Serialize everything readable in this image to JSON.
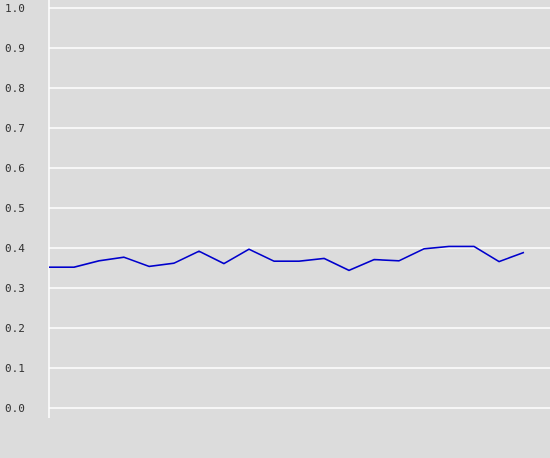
{
  "chart_data": {
    "type": "line",
    "title": "",
    "xlabel": "",
    "ylabel": "",
    "ylim": [
      0.0,
      1.0
    ],
    "yticks": [
      "0.0",
      "0.1",
      "0.2",
      "0.3",
      "0.4",
      "0.5",
      "0.6",
      "0.7",
      "0.8",
      "0.9",
      "1.0"
    ],
    "grid": true,
    "legend": "none",
    "series": [
      {
        "values": [
          0.352,
          0.352,
          0.368,
          0.377,
          0.354,
          0.362,
          0.392,
          0.361,
          0.397,
          0.367,
          0.367,
          0.374,
          0.344,
          0.371,
          0.368,
          0.398,
          0.404,
          0.404,
          0.366,
          0.389
        ],
        "color": "#0000cc"
      }
    ]
  },
  "colors": {
    "background": "#dcdcdc",
    "grid": "#ffffff",
    "axis_text": "#333333"
  }
}
